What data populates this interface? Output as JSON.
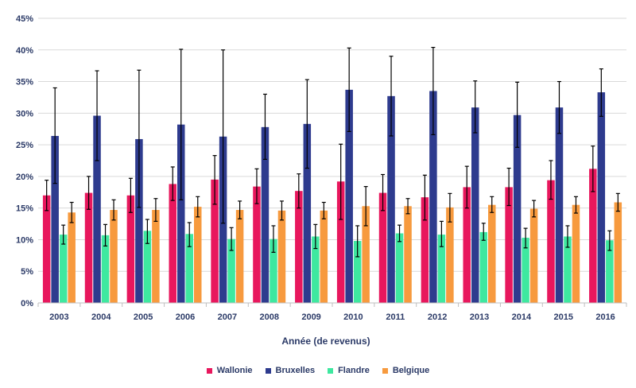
{
  "chart_data": {
    "type": "bar",
    "xlabel": "Année (de revenus)",
    "ylabel": "",
    "ylim": [
      0,
      45
    ],
    "yticks": [
      "0%",
      "5%",
      "10%",
      "15%",
      "20%",
      "25%",
      "30%",
      "35%",
      "40%",
      "45%"
    ],
    "grid": true,
    "legend_position": "bottom",
    "error_bars": true,
    "categories": [
      "2003",
      "2004",
      "2005",
      "2006",
      "2007",
      "2008",
      "2009",
      "2010",
      "2011",
      "2012",
      "2013",
      "2014",
      "2015",
      "2016"
    ],
    "series": [
      {
        "name": "Wallonie",
        "color": "#e8175d",
        "values": [
          17.0,
          17.4,
          17.0,
          18.8,
          19.5,
          18.4,
          17.7,
          19.2,
          17.4,
          16.7,
          18.3,
          18.3,
          19.4,
          21.2
        ],
        "err_low": [
          14.6,
          14.8,
          14.3,
          16.2,
          15.6,
          15.7,
          15.0,
          13.2,
          14.6,
          13.1,
          15.0,
          15.4,
          16.4,
          17.6
        ],
        "err_high": [
          19.4,
          20.0,
          19.7,
          21.5,
          23.3,
          21.2,
          20.4,
          25.1,
          20.3,
          20.2,
          21.6,
          21.3,
          22.5,
          24.8
        ]
      },
      {
        "name": "Bruxelles",
        "color": "#2e3b8e",
        "values": [
          26.4,
          29.6,
          25.9,
          28.2,
          26.3,
          27.8,
          28.3,
          33.7,
          32.7,
          33.5,
          30.9,
          29.7,
          30.9,
          33.3
        ],
        "err_low": [
          18.9,
          22.5,
          15.1,
          16.3,
          12.6,
          22.7,
          21.3,
          27.1,
          26.4,
          26.6,
          26.9,
          24.6,
          26.8,
          29.5
        ],
        "err_high": [
          34.0,
          36.7,
          36.8,
          40.1,
          40.0,
          33.0,
          35.3,
          40.3,
          39.0,
          40.4,
          35.1,
          34.9,
          35.0,
          37.0
        ]
      },
      {
        "name": "Flandre",
        "color": "#3ee8a0",
        "values": [
          10.8,
          10.7,
          11.4,
          10.9,
          10.1,
          10.1,
          10.5,
          9.8,
          11.0,
          10.8,
          11.2,
          10.3,
          10.5,
          9.9
        ],
        "err_low": [
          9.3,
          9.0,
          9.4,
          8.9,
          8.3,
          8.0,
          8.6,
          7.3,
          9.7,
          8.9,
          9.9,
          8.7,
          8.8,
          8.3
        ],
        "err_high": [
          12.3,
          12.4,
          13.2,
          12.7,
          11.9,
          12.2,
          12.4,
          12.2,
          12.3,
          12.9,
          12.6,
          11.8,
          12.2,
          11.4
        ]
      },
      {
        "name": "Belgique",
        "color": "#f79a3e",
        "values": [
          14.3,
          14.7,
          14.7,
          15.2,
          14.7,
          14.6,
          14.6,
          15.3,
          15.3,
          15.1,
          15.5,
          14.9,
          15.5,
          15.9
        ],
        "err_low": [
          12.7,
          13.1,
          12.9,
          13.6,
          13.3,
          13.1,
          13.3,
          12.2,
          14.1,
          12.8,
          14.3,
          13.6,
          14.2,
          14.5
        ],
        "err_high": [
          15.9,
          16.3,
          16.5,
          16.8,
          16.1,
          16.1,
          15.9,
          18.4,
          16.5,
          17.3,
          16.8,
          16.2,
          16.8,
          17.3
        ]
      }
    ]
  }
}
